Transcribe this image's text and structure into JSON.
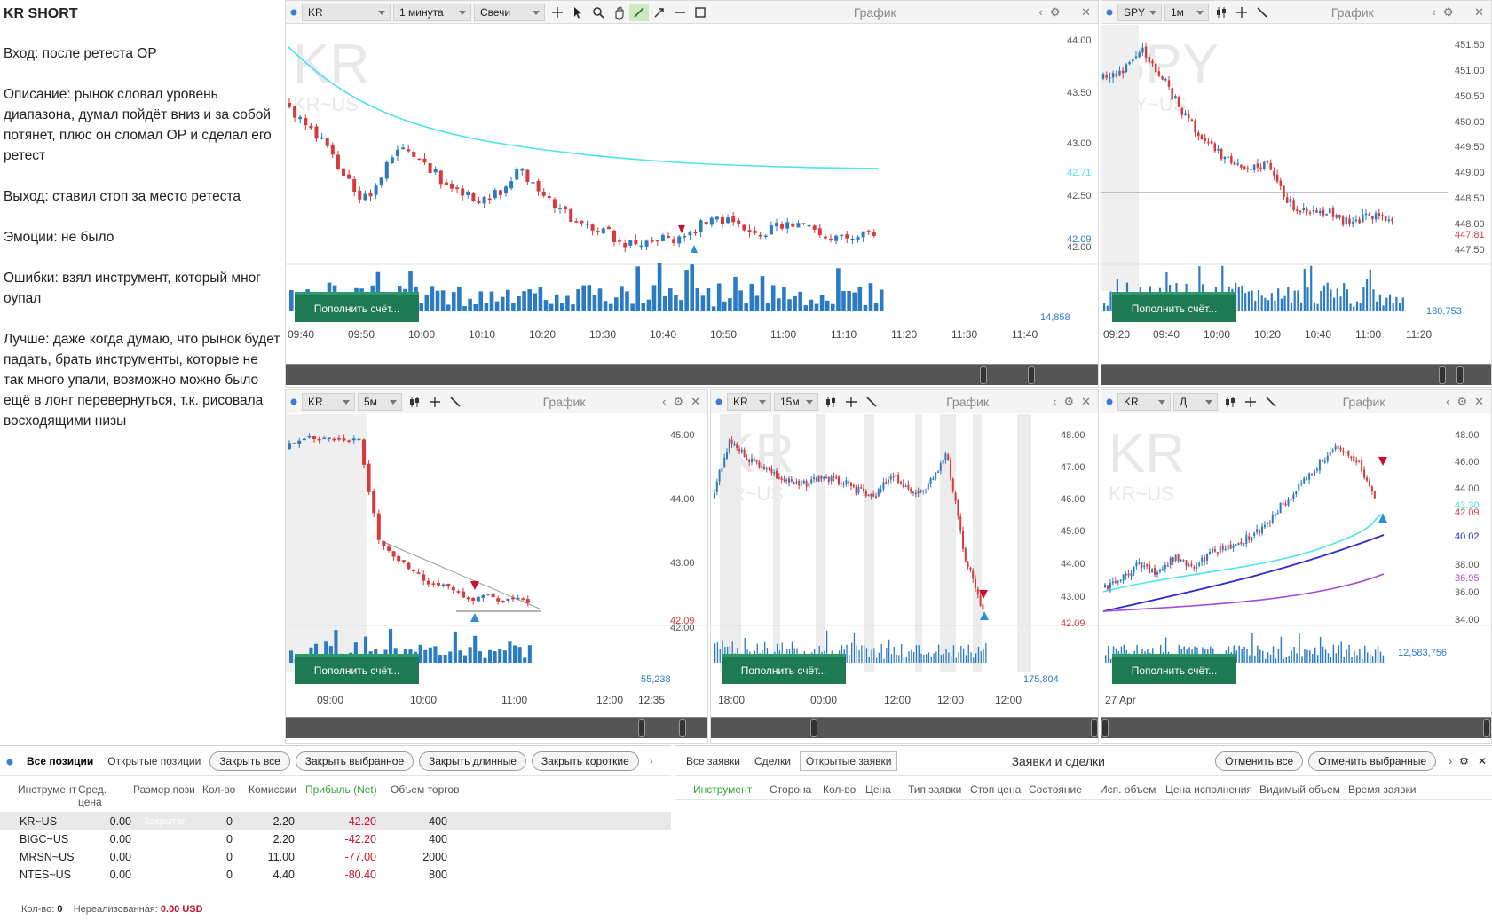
{
  "notes": {
    "title": "KR SHORT",
    "paragraphs": [
      "Вход: после ретеста ОР",
      "Описание: рынок словал уровень диапазона, думал пойдёт вниз и за собой потянет, плюс он сломал ОР и сделал его ретест",
      "Выход: ставил стоп за место ретеста",
      "Эмоции: не было",
      "Ошибки: взял инструмент, который мног оупал",
      "Лучше: даже когда думаю, что рынок будет падать, брать инструменты, которые не так много упали, возможно можно было ещё в лонг перевернуться, т.к. рисовала восходящими низы"
    ]
  },
  "colors": {
    "up": "#2b7bc4",
    "down": "#d63a3a",
    "ma": "#4de3ea",
    "ma2": "#2a2ad0",
    "ma3": "#a64ad6",
    "deposit": "#1e7a52"
  },
  "charts": [
    {
      "id": "c1",
      "symbol": "KR",
      "interval": "1 минута",
      "type": "Свечи",
      "title": "График",
      "bg_symbol": "KR",
      "bg_sub": "KR~US",
      "price_labels": [
        "44.00",
        "43.50",
        "43.00",
        "42.71",
        "42.50",
        "42.09",
        "42.00"
      ],
      "times": [
        "09:40",
        "09:50",
        "10:00",
        "10:10",
        "10:20",
        "10:30",
        "10:40",
        "10:50",
        "11:00",
        "11:10",
        "11:20",
        "11:30",
        "11:40"
      ],
      "volume_label": "14,858",
      "deposit": "Пополнить счёт..."
    },
    {
      "id": "c2",
      "symbol": "SPY",
      "interval": "1м",
      "title": "График",
      "bg_symbol": "SPY",
      "bg_sub": "SPY~US",
      "price_labels": [
        "451.50",
        "451.00",
        "450.50",
        "450.00",
        "449.50",
        "449.00",
        "448.50",
        "448.00",
        "447.81",
        "447.50"
      ],
      "times": [
        "09:20",
        "09:40",
        "10:00",
        "10:20",
        "10:40",
        "11:00",
        "11:20"
      ],
      "volume_label": "180,753",
      "deposit": "Пополнить счёт..."
    },
    {
      "id": "c3",
      "symbol": "KR",
      "interval": "5м",
      "title": "График",
      "bg_symbol": "KR",
      "bg_sub": "KR~US",
      "price_labels": [
        "45.00",
        "44.00",
        "43.00",
        "42.09",
        "42.00"
      ],
      "times": [
        "09:00",
        "10:00",
        "11:00",
        "12:00",
        "12:35"
      ],
      "volume_label": "55,238",
      "deposit": "Пополнить счёт..."
    },
    {
      "id": "c4",
      "symbol": "KR",
      "interval": "15м",
      "title": "График",
      "bg_symbol": "KR",
      "bg_sub": "KR~US",
      "price_labels": [
        "48.00",
        "47.00",
        "46.00",
        "45.00",
        "44.00",
        "43.00",
        "42.09"
      ],
      "times": [
        "18:00",
        "00:00",
        "12:00",
        "12:00",
        "12:00"
      ],
      "volume_label": "175,804",
      "deposit": "Пополнить счёт..."
    },
    {
      "id": "c5",
      "symbol": "KR",
      "interval": "Д",
      "title": "График",
      "bg_symbol": "KR",
      "bg_sub": "KR~US",
      "price_labels": [
        "48.00",
        "46.00",
        "44.00",
        "43.30",
        "42.09",
        "40.02",
        "38.00",
        "36.95",
        "36.00",
        "34.00"
      ],
      "times": [
        "27 Apr"
      ],
      "volume_label": "12,583,756",
      "deposit": "Пополнить счёт..."
    }
  ],
  "positions": {
    "tabs": [
      "Все позиции",
      "Открытые позиции"
    ],
    "buttons": [
      "Закрыть все",
      "Закрыть выбранное",
      "Закрыть длинные",
      "Закрыть короткие"
    ],
    "columns": [
      "Инструмент",
      "Сред. цена",
      "Размер пози",
      "Кол-во",
      "Комиссии",
      "Прибыль (Net)",
      "Объем торгов"
    ],
    "rows": [
      {
        "symbol": "KR~US",
        "avg": "0.00",
        "size": "Закрытая",
        "qty": "0",
        "fee": "2.20",
        "pnl": "-42.20",
        "vol": "400"
      },
      {
        "symbol": "BIGC~US",
        "avg": "0.00",
        "size": "",
        "qty": "0",
        "fee": "2.20",
        "pnl": "-42.20",
        "vol": "400"
      },
      {
        "symbol": "MRSN~US",
        "avg": "0.00",
        "size": "",
        "qty": "0",
        "fee": "11.00",
        "pnl": "-77.00",
        "vol": "2000"
      },
      {
        "symbol": "NTES~US",
        "avg": "0.00",
        "size": "",
        "qty": "0",
        "fee": "4.40",
        "pnl": "-80.40",
        "vol": "800"
      }
    ],
    "footer_qty_label": "Кол-во:",
    "footer_qty": "0",
    "footer_unreal_label": "Нереализованная:",
    "footer_unreal": "0.00 USD"
  },
  "orders": {
    "tabs": [
      "Все заявки",
      "Сделки",
      "Открытые заявки"
    ],
    "title": "Заявки и сделки",
    "buttons": [
      "Отменить все",
      "Отменить выбранные"
    ],
    "columns": [
      "Инструмент",
      "Сторона",
      "Кол-во",
      "Цена",
      "Тип заявки",
      "Стоп цена",
      "Состояние",
      "Исп. объем",
      "Цена исполнения",
      "Видимый объем",
      "Время заявки"
    ]
  }
}
